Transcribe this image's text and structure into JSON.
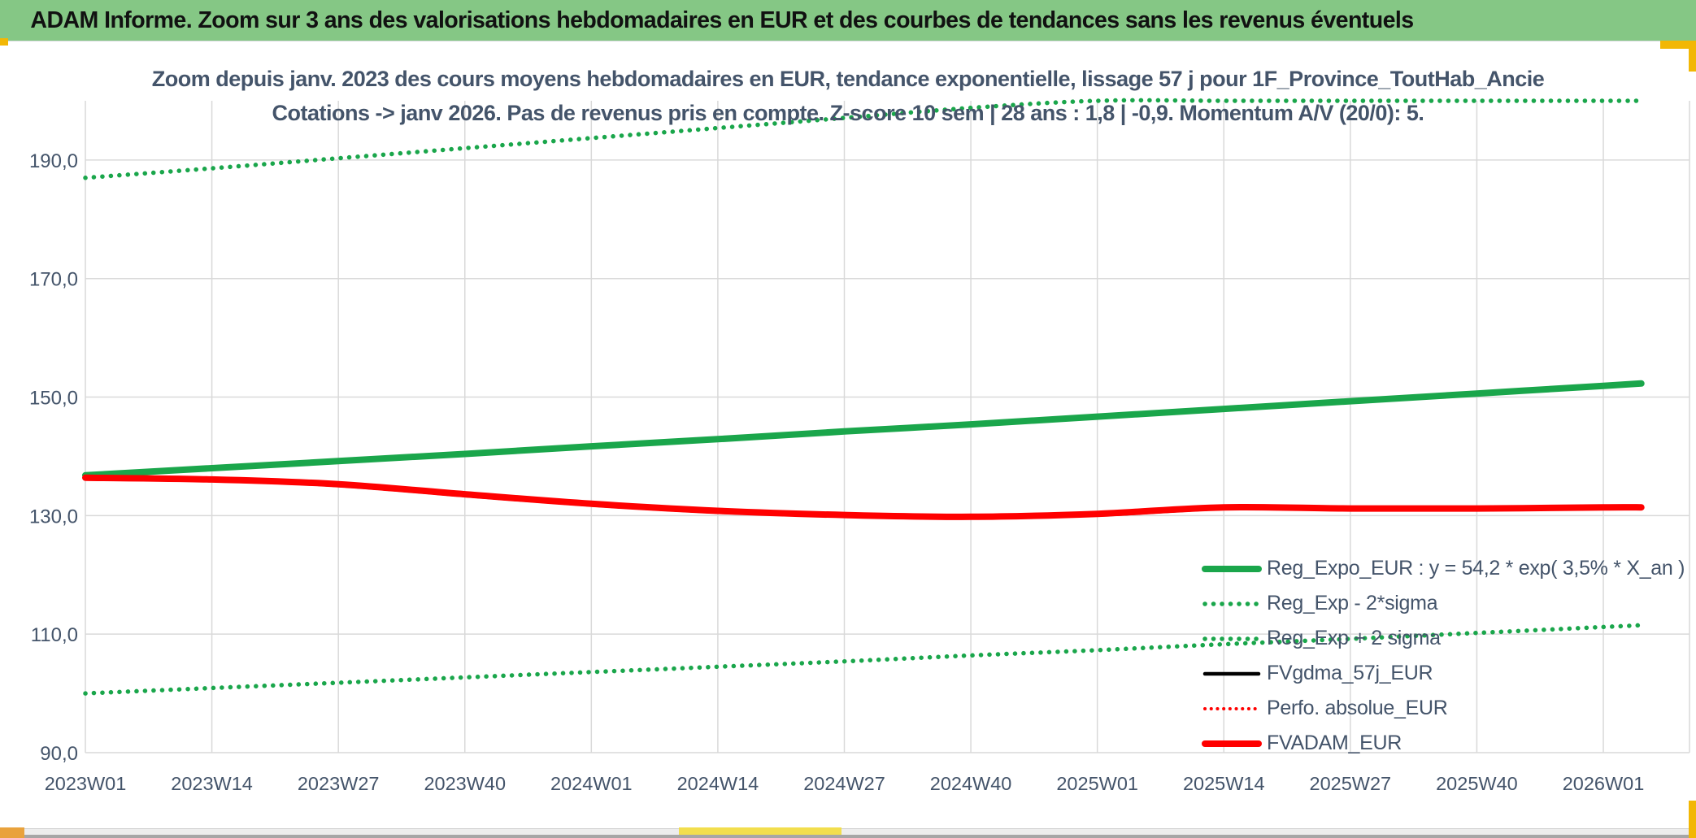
{
  "header": {
    "title": "ADAM Informe. Zoom sur 3 ans des valorisations hebdomadaires en EUR et des courbes de tendances sans les revenus éventuels"
  },
  "colors": {
    "header_bg": "#85C785",
    "title_text": "#44546A",
    "axis_text": "#44546A",
    "gridline": "#D9D9D9",
    "green_line": "#1AA64B",
    "red_line": "#FF0000",
    "black_line": "#000000",
    "gold": "#F2B705",
    "orange_cell": "#E9A23C",
    "yellow_cell": "#F2DE4D",
    "bottom_strip": "#EDEDED",
    "bottom_edge": "#A6A6A6"
  },
  "chart_data": {
    "type": "line",
    "title_line1": "Zoom depuis janv. 2023 des cours moyens hebdomadaires en EUR, tendance exponentielle, lissage 57 j pour 1F_Province_ToutHab_Ancie",
    "title_line2": "Cotations -> janv 2026. Pas de revenus pris en compte. Z-score 10 sem | 28 ans : 1,8 | -0,9. Momentum A/V (20/0): 5.",
    "grid": true,
    "legend_position": "inside-bottom-right",
    "ylim": [
      90,
      200
    ],
    "y_tick_values": [
      90,
      110,
      130,
      150,
      170,
      190
    ],
    "y_tick_labels": [
      "90,0",
      "110,0",
      "130,0",
      "150,0",
      "170,0",
      "190,0"
    ],
    "x_tick_labels": [
      "2023W01",
      "2023W14",
      "2023W27",
      "2023W40",
      "2024W01",
      "2024W14",
      "2024W27",
      "2024W40",
      "2025W01",
      "2025W14",
      "2025W27",
      "2025W40",
      "2026W01"
    ],
    "x_units": [
      0,
      1,
      2,
      3,
      4,
      5,
      6,
      7,
      8,
      9,
      10,
      11,
      12,
      12.3
    ],
    "series": [
      {
        "name": "Reg_Expo_EUR : y = 54,2 * exp( 3,5% *  X_an )",
        "color": "#1AA64B",
        "style": "solid",
        "width": 8,
        "values": [
          136.8,
          138.0,
          139.2,
          140.4,
          141.7,
          142.9,
          144.2,
          145.4,
          146.7,
          148.0,
          149.3,
          150.6,
          151.9,
          152.3
        ]
      },
      {
        "name": "Reg_Exp - 2*sigma",
        "color": "#1AA64B",
        "style": "dotted",
        "width": 5.5,
        "values": [
          100.0,
          100.9,
          101.8,
          102.7,
          103.6,
          104.5,
          105.4,
          106.4,
          107.3,
          108.3,
          109.2,
          110.2,
          111.2,
          111.5
        ]
      },
      {
        "name": "Reg_Exp + 2 sigma",
        "color": "#1AA64B",
        "style": "dotted",
        "width": 5.5,
        "values": [
          187.0,
          188.6,
          190.3,
          192.0,
          193.7,
          195.4,
          197.1,
          198.8,
          200.5,
          202.3,
          204.1,
          205.9,
          207.7,
          208.2
        ]
      },
      {
        "name": "FVgdma_57j_EUR",
        "color": "#000000",
        "style": "solid",
        "width": 4.5,
        "values": [
          136.4,
          136.0,
          135.1,
          133.4,
          131.8,
          130.6,
          130.0,
          129.7,
          130.1,
          131.2,
          131.1,
          131.1,
          131.3,
          131.3
        ]
      },
      {
        "name": "Perfo. absolue_EUR",
        "color": "#FF0000",
        "style": "dotted",
        "width": 4,
        "values": [
          136.4,
          136.1,
          135.3,
          133.6,
          132.0,
          130.8,
          130.1,
          129.8,
          130.3,
          131.4,
          131.2,
          131.2,
          131.4,
          131.4
        ]
      },
      {
        "name": "FVADAM_EUR",
        "color": "#FF0000",
        "style": "solid",
        "width": 8,
        "values": [
          136.4,
          136.1,
          135.3,
          133.6,
          132.0,
          130.8,
          130.1,
          129.8,
          130.3,
          131.4,
          131.2,
          131.2,
          131.4,
          131.4
        ]
      }
    ]
  }
}
